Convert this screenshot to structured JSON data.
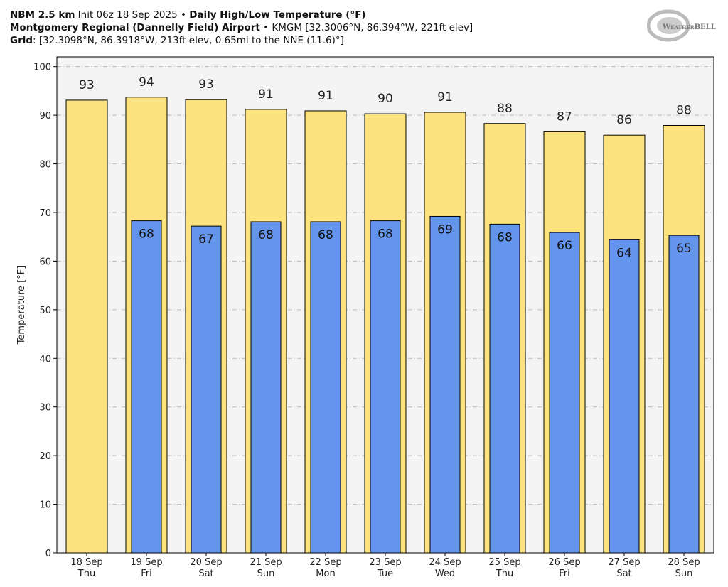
{
  "header": {
    "line1_bold1": "NBM 2.5 km",
    "line1_normal": " Init 06z 18 Sep 2025 • ",
    "line1_bold2": "Daily High/Low Temperature (°F)",
    "line2_bold": "Montgomery Regional (Dannelly Field) Airport",
    "line2_normal": " • KMGM [32.3006°N, 86.394°W, 221ft elev]",
    "line3_bold": "Grid",
    "line3_normal": ": [32.3098°N, 86.3918°W, 213ft elev, 0.65mi to the NNE (11.6)°]"
  },
  "logo": {
    "text": "WEATHERBELL"
  },
  "chart_data": {
    "type": "bar",
    "title": "Daily High/Low Temperature (°F)",
    "ylabel": "Temperature [°F]",
    "xlabel": "",
    "ylim": [
      0,
      102
    ],
    "yticks": [
      0,
      10,
      20,
      30,
      40,
      50,
      60,
      70,
      80,
      90,
      100
    ],
    "grid": true,
    "categories": [
      [
        "18 Sep",
        "Thu"
      ],
      [
        "19 Sep",
        "Fri"
      ],
      [
        "20 Sep",
        "Sat"
      ],
      [
        "21 Sep",
        "Sun"
      ],
      [
        "22 Sep",
        "Mon"
      ],
      [
        "23 Sep",
        "Tue"
      ],
      [
        "24 Sep",
        "Wed"
      ],
      [
        "25 Sep",
        "Thu"
      ],
      [
        "26 Sep",
        "Fri"
      ],
      [
        "27 Sep",
        "Sat"
      ],
      [
        "28 Sep",
        "Sun"
      ]
    ],
    "series": [
      {
        "key": "high",
        "color": "#fde37e",
        "values": [
          93.1,
          93.7,
          93.2,
          91.2,
          90.9,
          90.3,
          90.6,
          88.3,
          86.6,
          85.9,
          87.9
        ],
        "labels": [
          "93",
          "94",
          "93",
          "91",
          "91",
          "90",
          "91",
          "88",
          "87",
          "86",
          "88"
        ]
      },
      {
        "key": "low",
        "color": "#6495ed",
        "values": [
          null,
          68.3,
          67.2,
          68.1,
          68.1,
          68.3,
          69.2,
          67.6,
          65.9,
          64.4,
          65.3
        ],
        "labels": [
          "",
          "68",
          "67",
          "68",
          "68",
          "68",
          "69",
          "68",
          "66",
          "64",
          "65"
        ]
      }
    ]
  }
}
